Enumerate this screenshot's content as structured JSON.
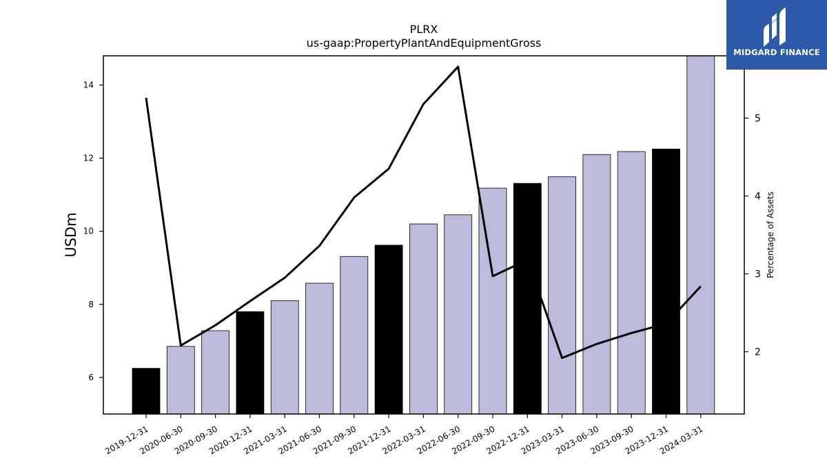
{
  "chart_data": {
    "type": "bar",
    "title": "PLRX",
    "subtitle": "us-gaap:PropertyPlantAndEquipmentGross",
    "ylabel": "USDm",
    "y2label": "Percentage of Assets",
    "ylim": [
      5.0,
      14.8
    ],
    "y2lim": [
      1.2,
      5.8
    ],
    "yticks": [
      6,
      8,
      10,
      12,
      14
    ],
    "y2ticks": [
      2,
      3,
      4,
      5
    ],
    "grid": false,
    "categories": [
      "2019-12-31",
      "2020-06-30",
      "2020-09-30",
      "2020-12-31",
      "2021-03-31",
      "2021-06-30",
      "2021-09-30",
      "2021-12-31",
      "2022-03-31",
      "2022-06-30",
      "2022-09-30",
      "2022-12-31",
      "2023-03-31",
      "2023-06-30",
      "2023-09-30",
      "2023-12-31",
      "2024-03-31"
    ],
    "series": [
      {
        "axis": "left",
        "kind": "bar",
        "values": [
          6.25,
          6.85,
          7.28,
          7.8,
          8.1,
          8.58,
          9.31,
          9.62,
          10.2,
          10.45,
          11.18,
          11.31,
          11.49,
          12.1,
          12.18,
          12.25,
          14.85
        ],
        "colors": [
          "#000000",
          "#bdbbdb",
          "#bdbbdb",
          "#000000",
          "#bdbbdb",
          "#bdbbdb",
          "#bdbbdb",
          "#000000",
          "#bdbbdb",
          "#bdbbdb",
          "#bdbbdb",
          "#000000",
          "#bdbbdb",
          "#bdbbdb",
          "#bdbbdb",
          "#000000",
          "#bdbbdb"
        ]
      },
      {
        "axis": "right",
        "kind": "line",
        "color": "#000000",
        "values": [
          5.26,
          2.08,
          2.34,
          2.65,
          2.95,
          3.36,
          3.98,
          4.35,
          5.18,
          5.66,
          2.97,
          3.18,
          1.92,
          2.1,
          2.24,
          2.36,
          2.84
        ]
      }
    ]
  },
  "logo": {
    "text": "MIDGARD FINANCE",
    "icon": "midgard-finance-logo-icon",
    "background": "#2d5aa8"
  }
}
